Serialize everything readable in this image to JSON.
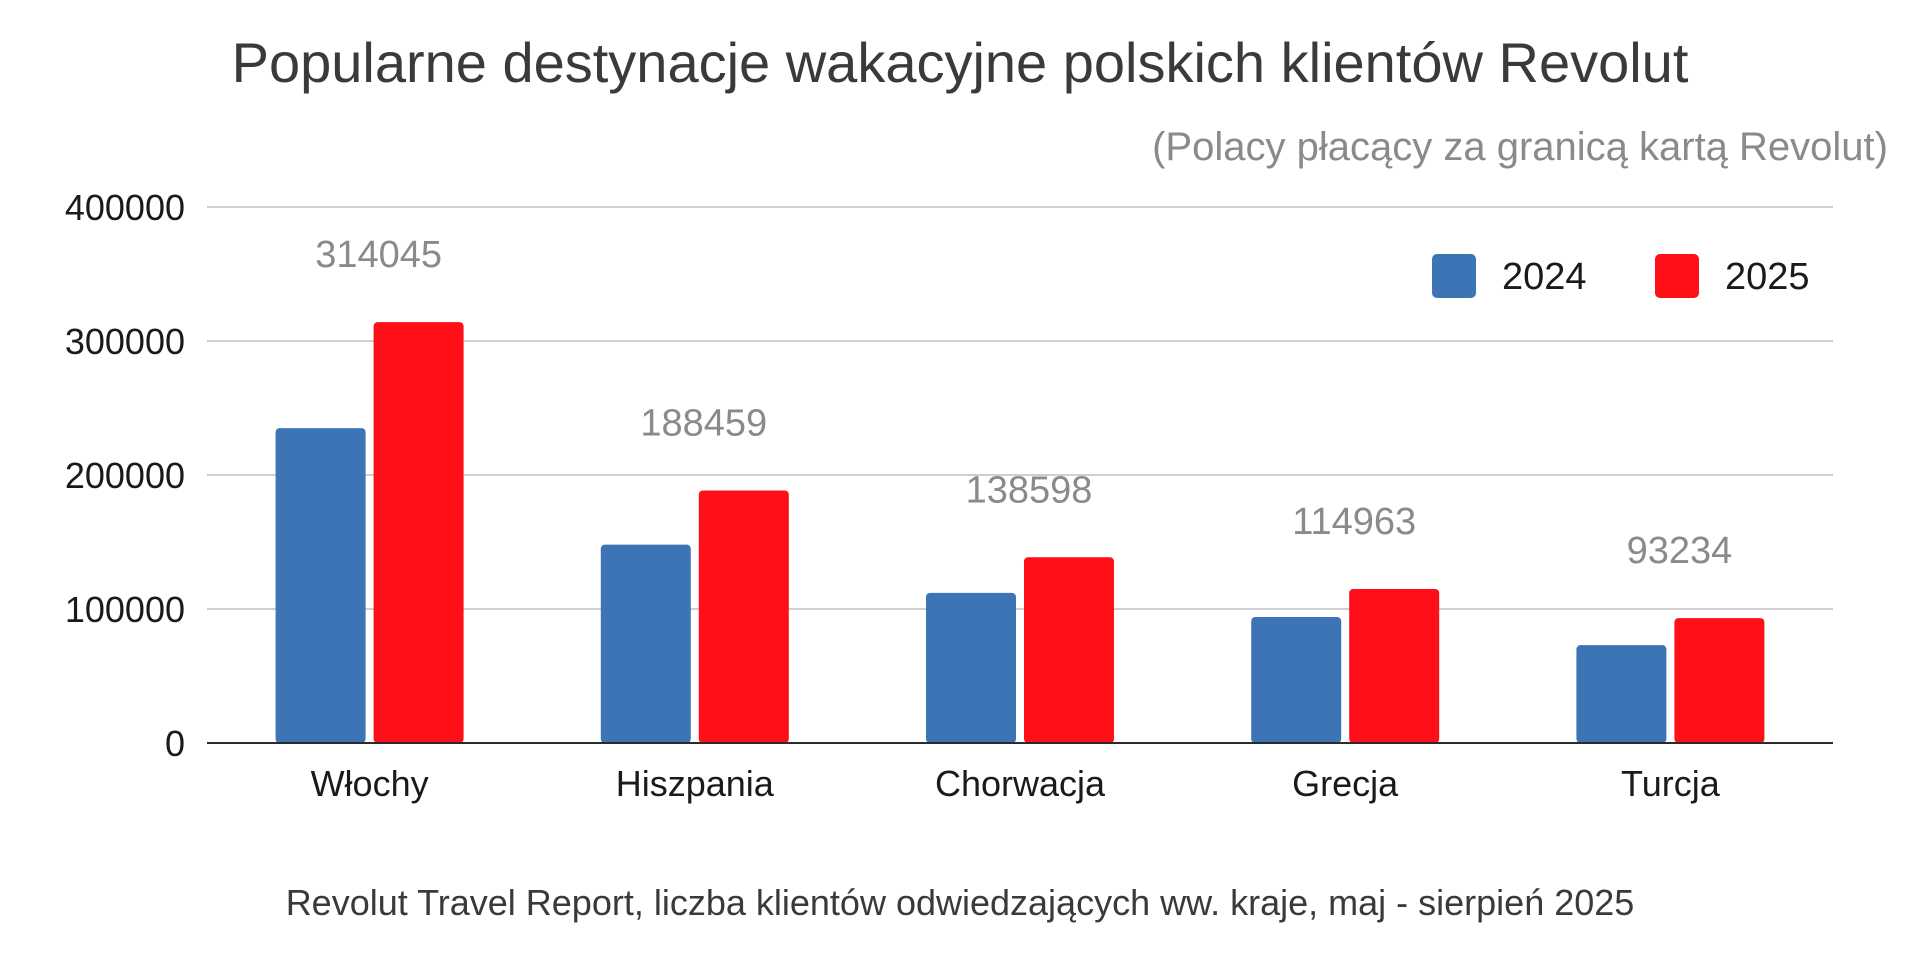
{
  "chart_data": {
    "type": "bar",
    "title": "Popularne destynacje wakacyjne polskich klientów Revolut",
    "subtitle": "(Polacy płacący za granicą kartą Revolut)",
    "source_note": "Revolut Travel Report, liczba klientów odwiedzających ww. kraje, maj - sierpień 2025",
    "categories": [
      "Włochy",
      "Hiszpania",
      "Chorwacja",
      "Grecja",
      "Turcja"
    ],
    "series": [
      {
        "name": "2024",
        "color": "#3d74b5",
        "values": [
          235000,
          148000,
          112000,
          94000,
          73000
        ],
        "labels_shown": false
      },
      {
        "name": "2025",
        "color": "#ff0f18",
        "values": [
          314045,
          188459,
          138598,
          114963,
          93234
        ],
        "labels_shown": true
      }
    ],
    "xlabel": "",
    "ylabel": "",
    "ylim": [
      0,
      400000
    ],
    "yticks": [
      0,
      100000,
      200000,
      300000,
      400000
    ],
    "grid": true,
    "legend_position": "top-right"
  }
}
